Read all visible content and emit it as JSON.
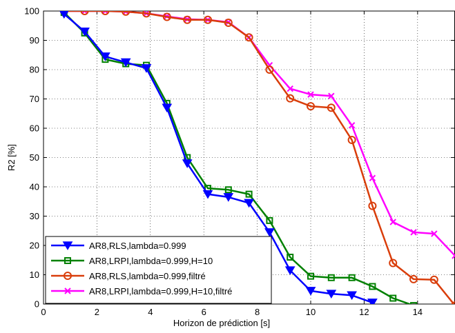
{
  "chart_data": {
    "type": "line",
    "title": "",
    "xlabel": "Horizon de prédiction [s]",
    "ylabel": "R2 [%]",
    "xlim": [
      0,
      15.4
    ],
    "ylim": [
      0,
      100
    ],
    "xticks": [
      0,
      2,
      4,
      6,
      8,
      10,
      12,
      14
    ],
    "yticks": [
      0,
      10,
      20,
      30,
      40,
      50,
      60,
      70,
      80,
      90,
      100
    ],
    "grid": true,
    "legend_position": "bottom-left",
    "series": [
      {
        "name": "AR8,RLS,lambda=0.999",
        "color": "#0000ff",
        "marker": "triangle-down",
        "x": [
          0.77,
          1.54,
          2.31,
          3.08,
          3.85,
          4.62,
          5.38,
          6.15,
          6.92,
          7.69,
          8.46,
          9.23,
          10.0,
          10.77,
          11.54,
          12.31
        ],
        "y": [
          99.0,
          93.0,
          84.5,
          82.5,
          80.5,
          67.0,
          48.0,
          37.5,
          36.5,
          34.5,
          24.5,
          11.5,
          4.5,
          3.5,
          3.0,
          0.5
        ]
      },
      {
        "name": "AR8,LRPI,lambda=0.999,H=10",
        "color": "#008000",
        "marker": "square",
        "x": [
          0.77,
          1.54,
          2.31,
          3.08,
          3.85,
          4.62,
          5.38,
          6.15,
          6.92,
          7.69,
          8.46,
          9.23,
          10.0,
          10.77,
          11.54,
          12.31,
          13.08,
          13.85
        ],
        "y": [
          99.5,
          92.5,
          83.5,
          82.0,
          81.5,
          68.5,
          50.0,
          39.5,
          39.0,
          37.5,
          28.5,
          16.0,
          9.5,
          9.0,
          9.0,
          6.0,
          2.0,
          -0.5
        ]
      },
      {
        "name": "AR8,RLS,lambda=0.999,filtré",
        "color": "#d93d0a",
        "marker": "circle",
        "x": [
          0.77,
          1.54,
          2.31,
          3.08,
          3.85,
          4.62,
          5.38,
          6.15,
          6.92,
          7.69,
          8.46,
          9.23,
          10.0,
          10.77,
          11.54,
          12.31,
          13.08,
          13.85,
          14.62,
          15.4
        ],
        "y": [
          100.0,
          100.0,
          100.0,
          99.8,
          99.2,
          98.0,
          97.0,
          97.0,
          96.0,
          91.0,
          80.0,
          70.2,
          67.5,
          67.0,
          56.0,
          33.5,
          14.0,
          8.5,
          8.3,
          -0.5
        ]
      },
      {
        "name": "AR8,LRPI,lambda=0.999,H=10,filtré",
        "color": "#ff00ff",
        "marker": "x",
        "x": [
          0.77,
          1.54,
          2.31,
          3.08,
          3.85,
          4.62,
          5.38,
          6.15,
          6.92,
          7.69,
          8.46,
          9.23,
          10.0,
          10.77,
          11.54,
          12.31,
          13.08,
          13.85,
          14.62,
          15.4
        ],
        "y": [
          100.0,
          100.0,
          100.0,
          99.8,
          99.2,
          98.2,
          97.2,
          97.0,
          96.2,
          91.0,
          81.5,
          73.5,
          71.5,
          71.0,
          61.0,
          43.0,
          28.0,
          24.5,
          24.0,
          16.5
        ]
      }
    ]
  }
}
